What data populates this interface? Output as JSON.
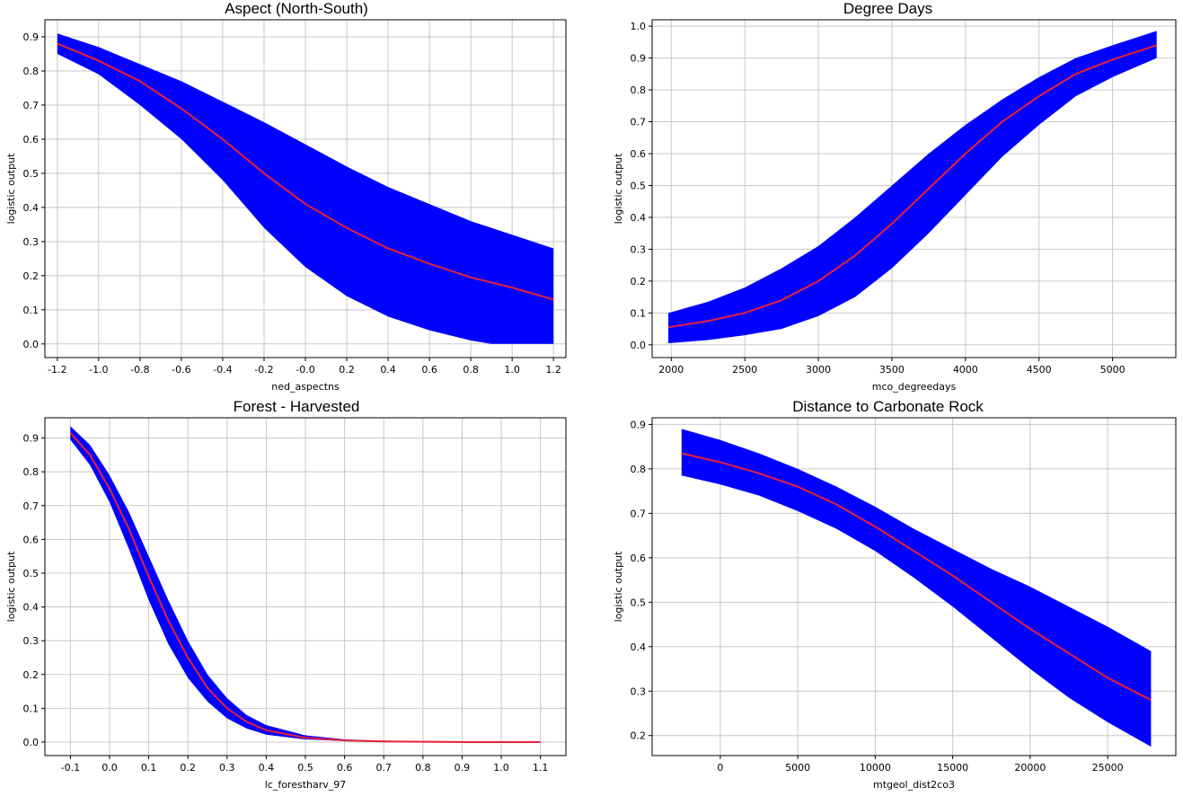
{
  "charts": [
    {
      "title": "Aspect (North-South)",
      "chart_data": {
        "type": "area",
        "title": "Aspect (North-South)",
        "xlabel": "ned_aspectns",
        "ylabel": "logistic output",
        "xlim": [
          -1.26,
          1.26
        ],
        "ylim": [
          -0.04,
          0.95
        ],
        "xticks": [
          -1.2,
          -1.0,
          -0.8,
          -0.6,
          -0.4,
          -0.2,
          0.0,
          0.2,
          0.4,
          0.6,
          0.8,
          1.0,
          1.2
        ],
        "xtick_labels": [
          "-1.2",
          "-1.0",
          "-0.8",
          "-0.6",
          "-0.4",
          "-0.2",
          "-0.0",
          "0.2",
          "0.4",
          "0.6",
          "0.8",
          "1.0",
          "1.2"
        ],
        "yticks": [
          0.0,
          0.1,
          0.2,
          0.3,
          0.4,
          0.5,
          0.6,
          0.7,
          0.8,
          0.9
        ],
        "ytick_labels": [
          "0.0",
          "0.1",
          "0.2",
          "0.3",
          "0.4",
          "0.5",
          "0.6",
          "0.7",
          "0.8",
          "0.9"
        ],
        "grid": true,
        "x": [
          -1.2,
          -1.0,
          -0.8,
          -0.6,
          -0.4,
          -0.2,
          0.0,
          0.2,
          0.4,
          0.6,
          0.8,
          0.9,
          1.0,
          1.2
        ],
        "series": [
          {
            "role": "upper",
            "values": [
              0.91,
              0.87,
              0.82,
              0.77,
              0.71,
              0.65,
              0.585,
              0.52,
              0.46,
              0.41,
              0.36,
              0.34,
              0.32,
              0.28
            ]
          },
          {
            "role": "mean",
            "values": [
              0.88,
              0.83,
              0.77,
              0.69,
              0.6,
              0.5,
              0.41,
              0.34,
              0.28,
              0.235,
              0.195,
              0.18,
              0.165,
              0.13
            ]
          },
          {
            "role": "lower",
            "values": [
              0.85,
              0.79,
              0.7,
              0.6,
              0.48,
              0.34,
              0.225,
              0.14,
              0.08,
              0.04,
              0.01,
              0.0,
              0.0,
              0.0
            ]
          }
        ]
      }
    },
    {
      "title": "Degree Days",
      "chart_data": {
        "type": "area",
        "title": "Degree Days",
        "xlabel": "mco_degreedays",
        "ylabel": "logistic output",
        "xlim": [
          1870,
          5430
        ],
        "ylim": [
          -0.04,
          1.02
        ],
        "xticks": [
          2000,
          2500,
          3000,
          3500,
          4000,
          4500,
          5000
        ],
        "xtick_labels": [
          "2000",
          "2500",
          "3000",
          "3500",
          "4000",
          "4500",
          "5000"
        ],
        "yticks": [
          0.0,
          0.1,
          0.2,
          0.3,
          0.4,
          0.5,
          0.6,
          0.7,
          0.8,
          0.9,
          1.0
        ],
        "ytick_labels": [
          "0.0",
          "0.1",
          "0.2",
          "0.3",
          "0.4",
          "0.5",
          "0.6",
          "0.7",
          "0.8",
          "0.9",
          "1.0"
        ],
        "grid": true,
        "x": [
          1980,
          2250,
          2500,
          2750,
          3000,
          3250,
          3500,
          3750,
          4000,
          4250,
          4500,
          4750,
          5000,
          5300
        ],
        "series": [
          {
            "role": "upper",
            "values": [
              0.1,
              0.135,
              0.18,
              0.24,
              0.31,
              0.4,
              0.5,
              0.6,
              0.69,
              0.77,
              0.84,
              0.9,
              0.94,
              0.985
            ]
          },
          {
            "role": "mean",
            "values": [
              0.055,
              0.075,
              0.1,
              0.14,
              0.2,
              0.28,
              0.38,
              0.49,
              0.6,
              0.7,
              0.78,
              0.85,
              0.895,
              0.94
            ]
          },
          {
            "role": "lower",
            "values": [
              0.005,
              0.015,
              0.03,
              0.05,
              0.09,
              0.15,
              0.24,
              0.35,
              0.47,
              0.59,
              0.69,
              0.78,
              0.84,
              0.9
            ]
          }
        ]
      }
    },
    {
      "title": "Forest - Harvested",
      "chart_data": {
        "type": "area",
        "title": "Forest - Harvested",
        "xlabel": "lc_forestharv_97",
        "ylabel": "logistic output",
        "xlim": [
          -0.165,
          1.165
        ],
        "ylim": [
          -0.04,
          0.96
        ],
        "xticks": [
          -0.1,
          0.0,
          0.1,
          0.2,
          0.3,
          0.4,
          0.5,
          0.6,
          0.7,
          0.8,
          0.9,
          1.0,
          1.1
        ],
        "xtick_labels": [
          "-0.1",
          "0.0",
          "0.1",
          "0.2",
          "0.3",
          "0.4",
          "0.5",
          "0.6",
          "0.7",
          "0.8",
          "0.9",
          "1.0",
          "1.1"
        ],
        "yticks": [
          0.0,
          0.1,
          0.2,
          0.3,
          0.4,
          0.5,
          0.6,
          0.7,
          0.8,
          0.9
        ],
        "ytick_labels": [
          "0.0",
          "0.1",
          "0.2",
          "0.3",
          "0.4",
          "0.5",
          "0.6",
          "0.7",
          "0.8",
          "0.9"
        ],
        "grid": true,
        "x": [
          -0.1,
          -0.05,
          0.0,
          0.05,
          0.1,
          0.15,
          0.2,
          0.25,
          0.3,
          0.35,
          0.4,
          0.5,
          0.6,
          0.7,
          0.8,
          0.9,
          1.0,
          1.1
        ],
        "series": [
          {
            "role": "upper",
            "values": [
              0.935,
              0.88,
              0.79,
              0.68,
              0.55,
              0.42,
              0.3,
              0.2,
              0.13,
              0.08,
              0.05,
              0.02,
              0.008,
              0.004,
              0.002,
              0.001,
              0.001,
              0.001
            ]
          },
          {
            "role": "mean",
            "values": [
              0.915,
              0.85,
              0.75,
              0.63,
              0.49,
              0.36,
              0.25,
              0.16,
              0.1,
              0.06,
              0.035,
              0.013,
              0.005,
              0.002,
              0.001,
              0.0,
              0.0,
              0.0
            ]
          },
          {
            "role": "lower",
            "values": [
              0.895,
              0.82,
              0.71,
              0.57,
              0.42,
              0.29,
              0.19,
              0.12,
              0.07,
              0.04,
              0.022,
              0.008,
              0.003,
              0.001,
              0.0,
              0.0,
              0.0,
              0.0
            ]
          }
        ]
      }
    },
    {
      "title": "Distance to Carbonate Rock",
      "chart_data": {
        "type": "area",
        "title": "Distance to Carbonate Rock",
        "xlabel": "mtgeol_dist2co3",
        "ylabel": "logistic output",
        "xlim": [
          -4400,
          29400
        ],
        "ylim": [
          0.155,
          0.915
        ],
        "xticks": [
          0,
          5000,
          10000,
          15000,
          20000,
          25000
        ],
        "xtick_labels": [
          "0",
          "5000",
          "10000",
          "15000",
          "20000",
          "25000"
        ],
        "yticks": [
          0.2,
          0.3,
          0.4,
          0.5,
          0.6,
          0.7,
          0.8,
          0.9
        ],
        "ytick_labels": [
          "0.2",
          "0.3",
          "0.4",
          "0.5",
          "0.6",
          "0.7",
          "0.8",
          "0.9"
        ],
        "grid": true,
        "x": [
          -2500,
          0,
          2500,
          5000,
          7500,
          10000,
          12500,
          15000,
          17500,
          20000,
          22500,
          25000,
          27800
        ],
        "series": [
          {
            "role": "upper",
            "values": [
              0.89,
              0.865,
              0.835,
              0.8,
              0.76,
              0.715,
              0.665,
              0.62,
              0.575,
              0.535,
              0.49,
              0.445,
              0.39
            ]
          },
          {
            "role": "mean",
            "values": [
              0.835,
              0.815,
              0.79,
              0.76,
              0.72,
              0.67,
              0.615,
              0.56,
              0.5,
              0.44,
              0.385,
              0.33,
              0.28
            ]
          },
          {
            "role": "lower",
            "values": [
              0.785,
              0.765,
              0.74,
              0.705,
              0.665,
              0.615,
              0.555,
              0.49,
              0.42,
              0.35,
              0.285,
              0.23,
              0.175
            ]
          }
        ]
      }
    }
  ],
  "colors": {
    "band": "#0000ff",
    "mean_line": "#e8203a",
    "grid": "#c8c8c8",
    "axis": "#000000",
    "background": "#ffffff"
  }
}
